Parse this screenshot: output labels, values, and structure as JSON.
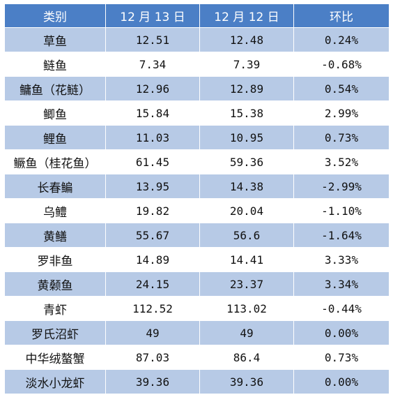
{
  "headers": [
    "类别",
    "12 月 13 日",
    "12 月 12 日",
    "环比"
  ],
  "rows": [
    [
      "草鱼",
      "12.51",
      "12.48",
      "0.24%"
    ],
    [
      "鲢鱼",
      "7.34",
      "7.39",
      "-0.68%"
    ],
    [
      "鳙鱼（花鲢）",
      "12.96",
      "12.89",
      "0.54%"
    ],
    [
      "鲫鱼",
      "15.84",
      "15.38",
      "2.99%"
    ],
    [
      "鲤鱼",
      "11.03",
      "10.95",
      "0.73%"
    ],
    [
      "鳜鱼（桂花鱼）",
      "61.45",
      "59.36",
      "3.52%"
    ],
    [
      "长春鳊",
      "13.95",
      "14.38",
      "-2.99%"
    ],
    [
      "乌鳢",
      "19.82",
      "20.04",
      "-1.10%"
    ],
    [
      "黄鳝",
      "55.67",
      "56.6",
      "-1.64%"
    ],
    [
      "罗非鱼",
      "14.89",
      "14.41",
      "3.33%"
    ],
    [
      "黄颡鱼",
      "24.15",
      "23.37",
      "3.34%"
    ],
    [
      "青虾",
      "112.52",
      "113.02",
      "-0.44%"
    ],
    [
      "罗氏沼虾",
      "49",
      "49",
      "0.00%"
    ],
    [
      "中华绒螯蟹",
      "87.03",
      "86.4",
      "0.73%"
    ],
    [
      "淡水小龙虾",
      "39.36",
      "39.36",
      "0.00%"
    ]
  ],
  "colors": {
    "header_bg": "#4b7fc6",
    "stripe": "#b7cae6"
  }
}
